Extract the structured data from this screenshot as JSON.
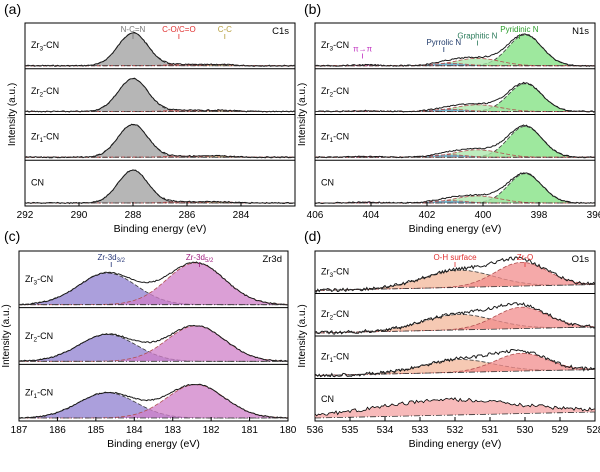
{
  "chart_data": [
    {
      "panel": "(a)",
      "type": "area",
      "element": "C1s",
      "xlabel": "Binding energy (eV)",
      "ylabel": "Intensity (a.u.)",
      "xlim": [
        292,
        282
      ],
      "xticks": [
        "292",
        "290",
        "288",
        "286",
        "284"
      ],
      "xtick_values": [
        292,
        290,
        288,
        286,
        284
      ],
      "reversed_x": true,
      "samples": [
        "Zr3-CN",
        "Zr2-CN",
        "Zr1-CN",
        "CN"
      ],
      "sample_labels": [
        {
          "base": "Zr",
          "sub": "3",
          "rest": "-CN"
        },
        {
          "base": "Zr",
          "sub": "2",
          "rest": "-CN"
        },
        {
          "base": "Zr",
          "sub": "1",
          "rest": "-CN"
        },
        {
          "base": "CN",
          "sub": "",
          "rest": ""
        }
      ],
      "peaks": [
        {
          "name": "N-C=N",
          "center": 288.0,
          "width": 0.55,
          "height": 0.8,
          "fill": "#9e9e9e"
        },
        {
          "name": "C-O/C=O",
          "center": 286.2,
          "width": 0.6,
          "height": 0.03,
          "fill": "#e8a0a0"
        },
        {
          "name": "C-C",
          "center": 284.8,
          "width": 0.5,
          "height": 0.03,
          "fill": "#d9c98a"
        }
      ],
      "annotations": [
        {
          "text": "N-C=N",
          "x": 288.0,
          "color": "#777777",
          "row": 0
        },
        {
          "text": "C-O/C=O",
          "x": 286.3,
          "color": "#e03030",
          "row": 0
        },
        {
          "text": "C-C",
          "x": 284.6,
          "color": "#b8a040",
          "row": 0
        }
      ]
    },
    {
      "panel": "(b)",
      "type": "area",
      "element": "N1s",
      "xlabel": "Binding energy (eV)",
      "ylabel": "Intensity (a.u.)",
      "xlim": [
        406,
        396
      ],
      "xticks": [
        "406",
        "404",
        "402",
        "400",
        "398",
        "396"
      ],
      "xtick_values": [
        406,
        404,
        402,
        400,
        398,
        396
      ],
      "reversed_x": true,
      "samples": [
        "Zr3-CN",
        "Zr2-CN",
        "Zr1-CN",
        "CN"
      ],
      "sample_labels": [
        {
          "base": "Zr",
          "sub": "3",
          "rest": "-CN"
        },
        {
          "base": "Zr",
          "sub": "2",
          "rest": "-CN"
        },
        {
          "base": "Zr",
          "sub": "1",
          "rest": "-CN"
        },
        {
          "base": "CN",
          "sub": "",
          "rest": ""
        }
      ],
      "peaks": [
        {
          "name": "Pyridinic N",
          "center": 398.5,
          "width": 0.6,
          "height": 0.75,
          "fill": "#7ee07e"
        },
        {
          "name": "Graphitic N",
          "center": 400.2,
          "width": 0.8,
          "height": 0.18,
          "fill": "#a8e6a8"
        },
        {
          "name": "Pyrrolic N",
          "center": 401.2,
          "width": 0.6,
          "height": 0.06,
          "fill": "#5aa0d0"
        },
        {
          "name": "π→π",
          "center": 404.2,
          "width": 0.5,
          "height": 0.02,
          "fill": "#c050c0"
        }
      ],
      "annotations": [
        {
          "text": "Pyridinic N",
          "x": 398.7,
          "color": "#2a9d2a",
          "row": 0
        },
        {
          "text": "Graphitic N",
          "x": 400.2,
          "color": "#2a7a5a",
          "row": 1
        },
        {
          "text": "Pyrrolic N",
          "x": 401.4,
          "color": "#1f3a6a",
          "row": 2
        },
        {
          "text": "π→π",
          "x": 404.3,
          "color": "#c030c0",
          "row": 3
        }
      ]
    },
    {
      "panel": "(c)",
      "type": "area",
      "element": "Zr3d",
      "xlabel": "Binding energy (eV)",
      "ylabel": "Intensity (a.u.)",
      "xlim": [
        187,
        180
      ],
      "xticks": [
        "187",
        "186",
        "185",
        "184",
        "183",
        "182",
        "181",
        "180"
      ],
      "xtick_values": [
        187,
        186,
        185,
        184,
        183,
        182,
        181,
        180
      ],
      "reversed_x": true,
      "samples": [
        "Zr3-CN",
        "Zr2-CN",
        "Zr1-CN"
      ],
      "sample_labels": [
        {
          "base": "Zr",
          "sub": "3",
          "rest": "-CN"
        },
        {
          "base": "Zr",
          "sub": "2",
          "rest": "-CN"
        },
        {
          "base": "Zr",
          "sub": "1",
          "rest": "-CN"
        }
      ],
      "peaks": [
        {
          "name": "Zr-3d3/2",
          "center": 184.7,
          "width": 0.75,
          "height": 0.62,
          "fill": "#8f7fd0"
        },
        {
          "name": "Zr-3d5/2",
          "center": 182.4,
          "width": 0.75,
          "height": 0.82,
          "fill": "#cf7fc8"
        }
      ],
      "annotations": [
        {
          "text": "Zr-3d",
          "sub": "3/2",
          "x": 184.6,
          "color": "#2a3a7a",
          "row": 0
        },
        {
          "text": "Zr-3d",
          "sub": "5/2",
          "x": 182.3,
          "color": "#a02080",
          "row": 0
        }
      ]
    },
    {
      "panel": "(d)",
      "type": "area",
      "element": "O1s",
      "xlabel": "Binding energy (eV)",
      "ylabel": "Intensity (a.u.)",
      "xlim": [
        536,
        528
      ],
      "xticks": [
        "536",
        "535",
        "534",
        "533",
        "532",
        "531",
        "530",
        "529",
        "528"
      ],
      "xtick_values": [
        536,
        535,
        534,
        533,
        532,
        531,
        530,
        529,
        528
      ],
      "reversed_x": true,
      "samples": [
        "Zr3-CN",
        "Zr2-CN",
        "Zr1-CN",
        "CN"
      ],
      "sample_labels": [
        {
          "base": "Zr",
          "sub": "3",
          "rest": "-CN"
        },
        {
          "base": "Zr",
          "sub": "2",
          "rest": "-CN"
        },
        {
          "base": "Zr",
          "sub": "1",
          "rest": "-CN"
        },
        {
          "base": "CN",
          "sub": "",
          "rest": ""
        }
      ],
      "peaks": [
        {
          "name": "O-H surface",
          "center": 531.9,
          "width": 1.0,
          "height": 0.45,
          "fill": "#f3b79a"
        },
        {
          "name": "Zr-O",
          "center": 530.1,
          "width": 0.75,
          "height": 0.62,
          "fill": "#f28c8c"
        }
      ],
      "annotations": [
        {
          "text": "O-H surface",
          "x": 532.0,
          "color": "#e03030",
          "row": 0
        },
        {
          "text": "Zr-O",
          "x": 530.0,
          "color": "#e03030",
          "row": 0
        }
      ]
    }
  ],
  "colors": {
    "envelope": "#1a1a1a",
    "baseline": "#333333",
    "cn_noise": "#000000"
  }
}
